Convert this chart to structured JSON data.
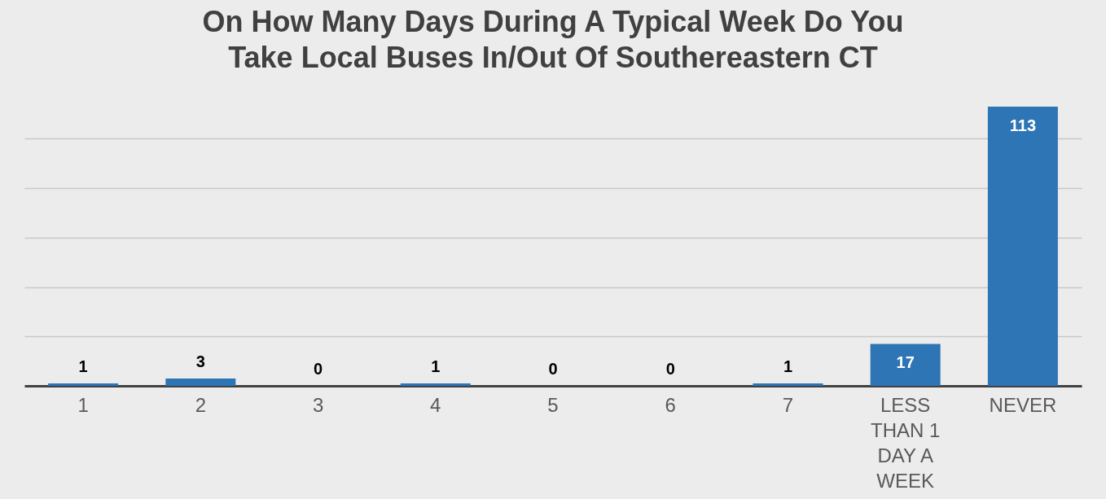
{
  "chart_data": {
    "type": "bar",
    "title": "On How Many Days During A Typical Week Do You Take Local Buses In/Out Of Southereastern CT",
    "categories": [
      "1",
      "2",
      "3",
      "4",
      "5",
      "6",
      "7",
      "LESS THAN 1 DAY A WEEK",
      "NEVER"
    ],
    "values": [
      1,
      3,
      0,
      1,
      0,
      0,
      1,
      17,
      113
    ],
    "color": "#2e75b6",
    "yticks": [
      {
        "value": 0,
        "label": null
      },
      {
        "value": 20,
        "label": null
      },
      {
        "value": 40,
        "label": null
      },
      {
        "value": 60,
        "label": null
      },
      {
        "value": 80,
        "label": null
      },
      {
        "value": 100,
        "label": null
      }
    ],
    "grid": "y",
    "data_labels": true,
    "tick_labels": "x"
  }
}
